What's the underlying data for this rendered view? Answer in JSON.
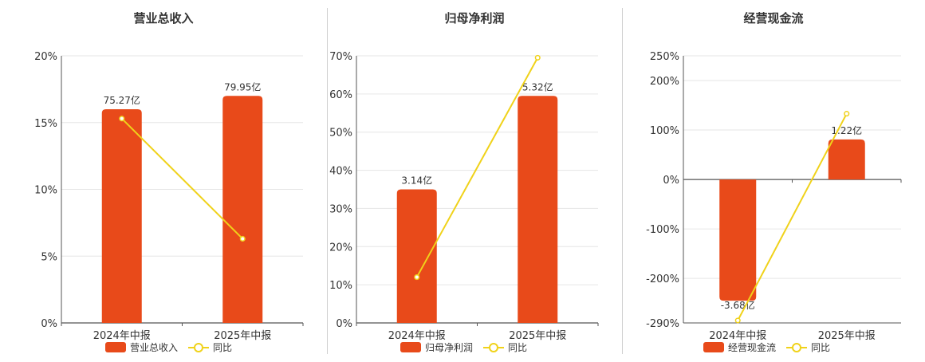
{
  "colors": {
    "bar": "#e84a1a",
    "line": "#f0d21a",
    "grid": "#e6e6e6",
    "axis": "#555555",
    "text": "#333333"
  },
  "chart_data": [
    {
      "type": "bar",
      "title": "营业总收入",
      "categories": [
        "2024年中报",
        "2025年中报"
      ],
      "series": [
        {
          "name": "营业总收入",
          "type": "bar",
          "values": [
            16,
            17
          ],
          "labels": [
            "75.27亿",
            "79.95亿"
          ]
        },
        {
          "name": "同比",
          "type": "line",
          "values": [
            15.3,
            6.3
          ]
        }
      ],
      "yticks": [
        "0%",
        "5%",
        "10%",
        "15%",
        "20%"
      ],
      "ylim": [
        0,
        20
      ],
      "grid": true,
      "legend": "bottom"
    },
    {
      "type": "bar",
      "title": "归母净利润",
      "categories": [
        "2024年中报",
        "2025年中报"
      ],
      "series": [
        {
          "name": "归母净利润",
          "type": "bar",
          "values": [
            35,
            59.5
          ],
          "labels": [
            "3.14亿",
            "5.32亿"
          ]
        },
        {
          "name": "同比",
          "type": "line",
          "values": [
            12,
            69.5
          ]
        }
      ],
      "yticks": [
        "0%",
        "10%",
        "20%",
        "30%",
        "40%",
        "50%",
        "60%",
        "70%"
      ],
      "ylim": [
        0,
        70
      ],
      "grid": true,
      "legend": "bottom"
    },
    {
      "type": "bar",
      "title": "经营现金流",
      "categories": [
        "2024年中报",
        "2025年中报"
      ],
      "series": [
        {
          "name": "经营现金流",
          "type": "bar",
          "values": [
            -245,
            81
          ],
          "labels": [
            "-3.68亿",
            "1.22亿"
          ]
        },
        {
          "name": "同比",
          "type": "line",
          "values": [
            -285,
            133
          ]
        }
      ],
      "yticks": [
        "-290%",
        "-200%",
        "-100%",
        "0%",
        "100%",
        "200%",
        "250%"
      ],
      "ytick_values": [
        -290,
        -200,
        -100,
        0,
        100,
        200,
        250
      ],
      "ylim": [
        -290,
        250
      ],
      "grid": true,
      "legend": "bottom"
    }
  ]
}
